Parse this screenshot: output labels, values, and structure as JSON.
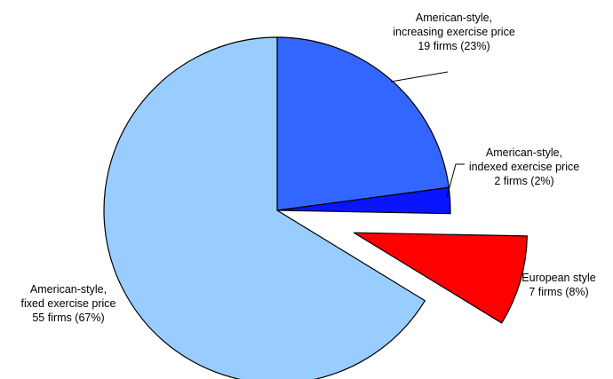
{
  "chart_data": {
    "type": "pie",
    "title": "",
    "slices": [
      {
        "lines": [
          "American-style,",
          "increasing exercise price",
          "19 firms (23%)"
        ],
        "firms": 19,
        "percent": 23,
        "color": "#3366FF",
        "exploded": false
      },
      {
        "lines": [
          "American-style,",
          "indexed exercise price",
          "2 firms (2%)"
        ],
        "firms": 2,
        "percent": 2,
        "color": "#0A14FF",
        "exploded": false
      },
      {
        "lines": [
          "European style",
          "7 firms (8%)"
        ],
        "firms": 7,
        "percent": 8,
        "color": "#FF0000",
        "exploded": true
      },
      {
        "lines": [
          "American-style,",
          "fixed exercise price",
          "55 firms (67%)"
        ],
        "firms": 55,
        "percent": 67,
        "color": "#99CCFF",
        "exploded": false
      }
    ],
    "start_angle": "12 o'clock",
    "direction": "clockwise",
    "legend": "none"
  }
}
